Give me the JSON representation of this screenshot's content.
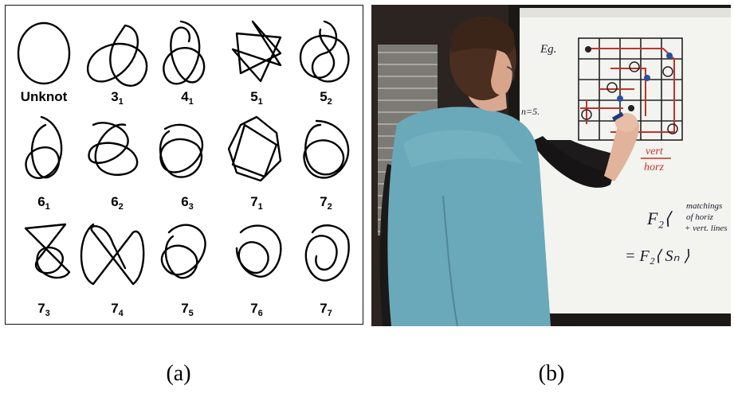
{
  "panel_a": {
    "knots": [
      {
        "name": "Unknot",
        "sub": ""
      },
      {
        "name": "3",
        "sub": "1"
      },
      {
        "name": "4",
        "sub": "1"
      },
      {
        "name": "5",
        "sub": "1"
      },
      {
        "name": "5",
        "sub": "2"
      },
      {
        "name": "6",
        "sub": "1"
      },
      {
        "name": "6",
        "sub": "2"
      },
      {
        "name": "6",
        "sub": "3"
      },
      {
        "name": "7",
        "sub": "1"
      },
      {
        "name": "7",
        "sub": "2"
      },
      {
        "name": "7",
        "sub": "3"
      },
      {
        "name": "7",
        "sub": "4"
      },
      {
        "name": "7",
        "sub": "5"
      },
      {
        "name": "7",
        "sub": "6"
      },
      {
        "name": "7",
        "sub": "7"
      }
    ]
  },
  "panel_b": {
    "board": {
      "eg": "Eg.",
      "n_label": "n=5.",
      "vert": "vert",
      "horz": "horz",
      "matchings": "matchings",
      "of_horiz": "of horiz",
      "vert_lines": "+ vert. lines",
      "formula_1": "F₂⟨",
      "formula_2": "= F₂⟨ Sₙ ⟩"
    }
  },
  "captions": {
    "a": "(a)",
    "b": "(b)"
  },
  "colors": {
    "ink": "#111111",
    "marker_red": "#c0322a",
    "vest": "#6aa9b9",
    "board": "#f4f4f2"
  }
}
